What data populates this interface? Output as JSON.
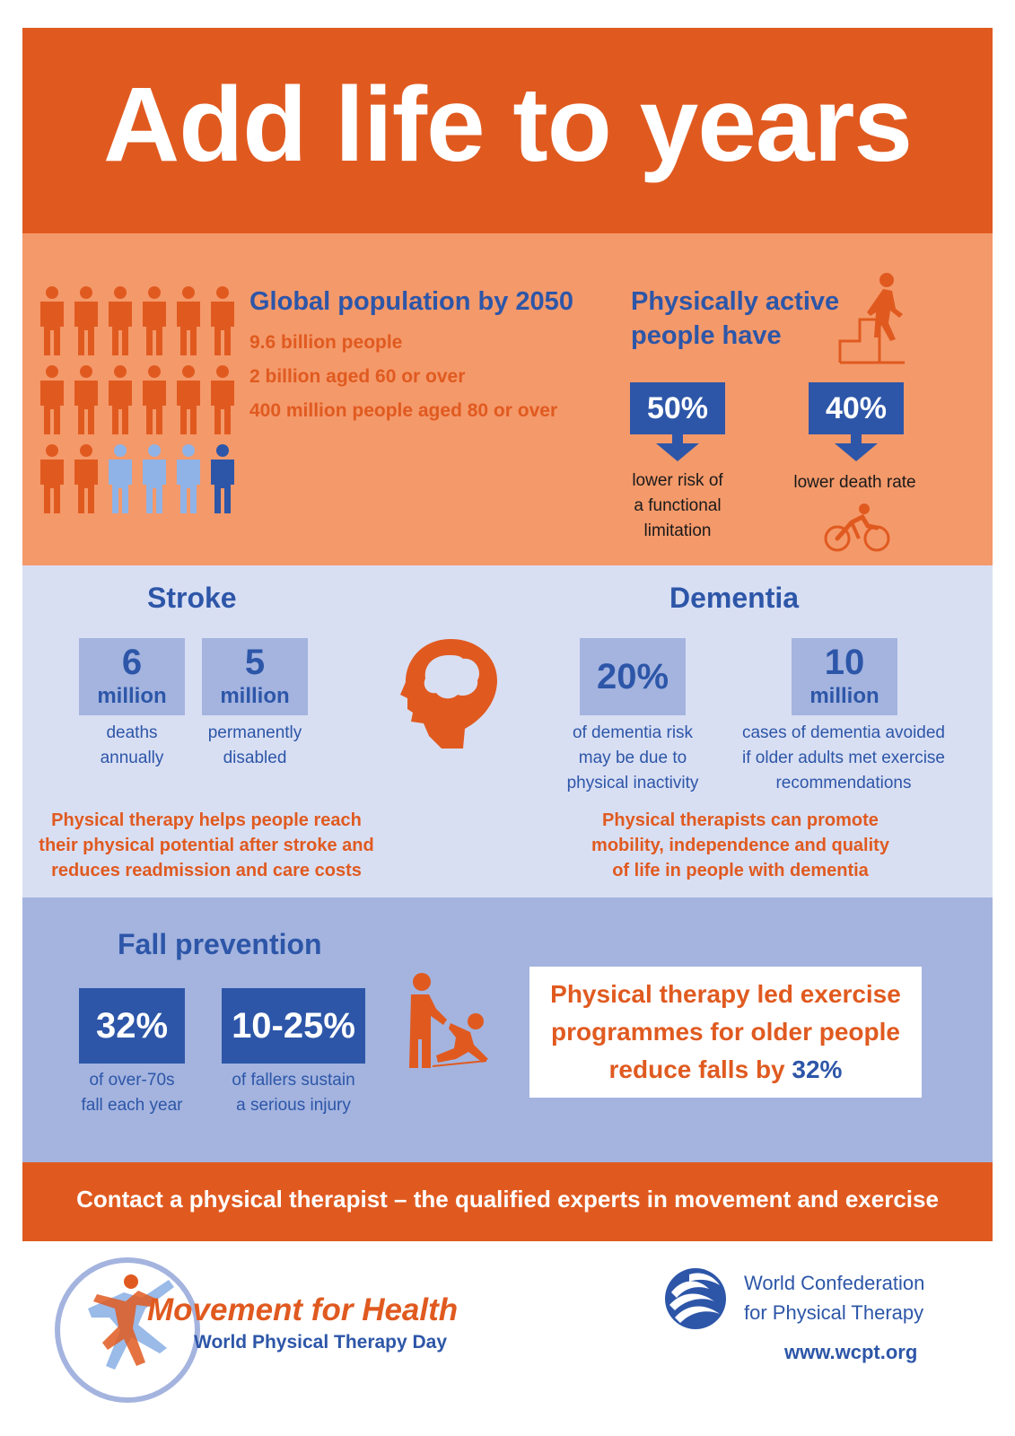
{
  "header": {
    "title": "Add life to years"
  },
  "population": {
    "heading": "Global population by 2050",
    "lines": [
      "9.6 billion people",
      "2 billion aged 60 or over",
      "400 million people aged 80 or over"
    ],
    "colors": {
      "orange": "#e05a20",
      "light_blue": "#8fb3e6",
      "dark_blue": "#2d56a8"
    }
  },
  "active": {
    "heading_line1": "Physically active",
    "heading_line2": "people have",
    "stat1": {
      "value": "50%",
      "caption_lines": [
        "lower risk of",
        "a functional",
        "limitation"
      ]
    },
    "stat2": {
      "value": "40%",
      "caption_lines": [
        "lower death rate"
      ]
    }
  },
  "stroke": {
    "heading": "Stroke",
    "stat1": {
      "number": "6",
      "unit": "million",
      "caption_lines": [
        "deaths",
        "annually"
      ]
    },
    "stat2": {
      "number": "5",
      "unit": "million",
      "caption_lines": [
        "permanently",
        "disabled"
      ]
    },
    "note_lines": [
      "Physical therapy helps people reach",
      "their physical potential after stroke and",
      "reduces readmission and care costs"
    ]
  },
  "dementia": {
    "heading": "Dementia",
    "stat1": {
      "value": "20%",
      "caption_lines": [
        "of dementia risk",
        "may be due to",
        "physical inactivity"
      ]
    },
    "stat2": {
      "number": "10",
      "unit": "million",
      "caption_lines": [
        "cases of dementia avoided",
        "if older adults met exercise",
        "recommendations"
      ]
    },
    "note_lines": [
      "Physical therapists can promote",
      "mobility, independence and quality",
      "of life in people with dementia"
    ]
  },
  "falls": {
    "heading": "Fall prevention",
    "stat1": {
      "value": "32%",
      "caption_lines": [
        "of over-70s",
        "fall each year"
      ]
    },
    "stat2": {
      "value": "10-25%",
      "caption_lines": [
        "of fallers sustain",
        "a serious injury"
      ]
    },
    "callout_line1": "Physical therapy led exercise",
    "callout_line2": "programmes for older people",
    "callout_line3_prefix": "reduce falls by ",
    "callout_line3_value": "32%"
  },
  "footer_banner": {
    "text": "Contact a physical therapist –  the qualified experts in movement and exercise"
  },
  "logos": {
    "mfh_title": "Movement for Health",
    "mfh_subtitle": "World Physical Therapy Day",
    "wcpt_line1": "World Confederation",
    "wcpt_line2": "for Physical Therapy",
    "wcpt_url": "www.wcpt.org"
  }
}
